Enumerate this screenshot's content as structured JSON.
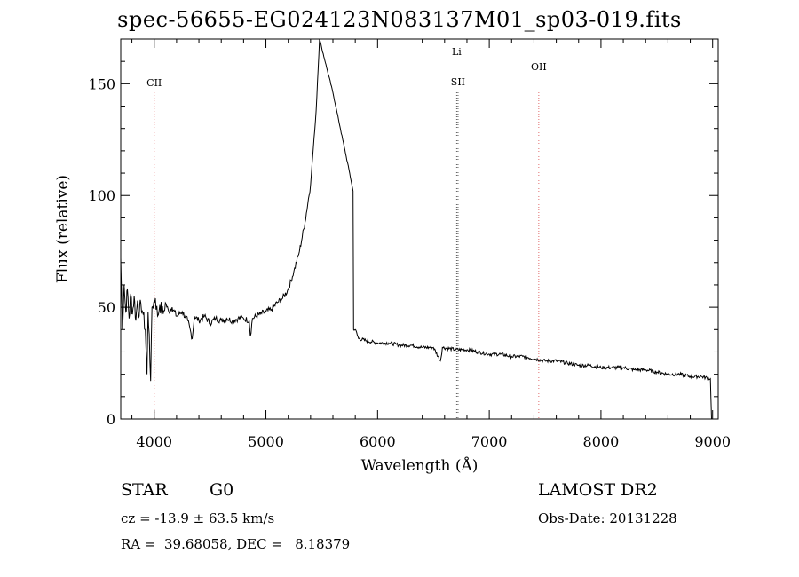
{
  "chart_data": {
    "type": "line",
    "title": "spec-56655-EG024123N083137M01_sp03-019.fits",
    "xlabel": "Wavelength (Å)",
    "ylabel": "Flux (relative)",
    "xlim": [
      3700,
      9050
    ],
    "ylim": [
      0,
      170
    ],
    "xticks": [
      4000,
      5000,
      6000,
      7000,
      8000,
      9000
    ],
    "yticks": [
      0,
      50,
      100,
      150
    ],
    "grid": false,
    "series": [
      {
        "points": [
          [
            3700,
            72
          ],
          [
            3715,
            40
          ],
          [
            3730,
            60
          ],
          [
            3745,
            48
          ],
          [
            3760,
            58
          ],
          [
            3775,
            45
          ],
          [
            3790,
            56
          ],
          [
            3805,
            47
          ],
          [
            3820,
            55
          ],
          [
            3835,
            44
          ],
          [
            3850,
            53
          ],
          [
            3865,
            46
          ],
          [
            3880,
            52
          ],
          [
            3900,
            47
          ],
          [
            3920,
            40
          ],
          [
            3935,
            20
          ],
          [
            3945,
            48
          ],
          [
            3955,
            38
          ],
          [
            3968,
            17
          ],
          [
            3980,
            50
          ],
          [
            3995,
            52
          ],
          [
            4010,
            54
          ],
          [
            4030,
            46
          ],
          [
            4050,
            51
          ],
          [
            4080,
            47
          ],
          [
            4100,
            52
          ],
          [
            4130,
            48
          ],
          [
            4160,
            50
          ],
          [
            4200,
            46
          ],
          [
            4250,
            48
          ],
          [
            4300,
            44
          ],
          [
            4340,
            36
          ],
          [
            4360,
            46
          ],
          [
            4400,
            44
          ],
          [
            4450,
            46
          ],
          [
            4500,
            43
          ],
          [
            4550,
            45
          ],
          [
            4600,
            44
          ],
          [
            4650,
            45
          ],
          [
            4700,
            44
          ],
          [
            4750,
            45
          ],
          [
            4800,
            45
          ],
          [
            4850,
            44
          ],
          [
            4861,
            37
          ],
          [
            4880,
            45
          ],
          [
            4950,
            47
          ],
          [
            5000,
            48
          ],
          [
            5050,
            49
          ],
          [
            5100,
            52
          ],
          [
            5150,
            54
          ],
          [
            5200,
            58
          ],
          [
            5250,
            66
          ],
          [
            5300,
            75
          ],
          [
            5350,
            88
          ],
          [
            5400,
            105
          ],
          [
            5450,
            138
          ],
          [
            5480,
            170
          ],
          [
            5500,
            166
          ],
          [
            5550,
            156
          ],
          [
            5600,
            146
          ],
          [
            5650,
            134
          ],
          [
            5700,
            122
          ],
          [
            5750,
            110
          ],
          [
            5780,
            102
          ],
          [
            5785,
            40
          ],
          [
            5800,
            40
          ],
          [
            5830,
            36
          ],
          [
            5900,
            35
          ],
          [
            6000,
            34
          ],
          [
            6100,
            34
          ],
          [
            6200,
            33
          ],
          [
            6300,
            33
          ],
          [
            6400,
            32
          ],
          [
            6500,
            32
          ],
          [
            6563,
            26
          ],
          [
            6580,
            32
          ],
          [
            6700,
            31
          ],
          [
            6800,
            31
          ],
          [
            6900,
            30
          ],
          [
            7000,
            29
          ],
          [
            7100,
            29
          ],
          [
            7200,
            28
          ],
          [
            7300,
            28
          ],
          [
            7400,
            27
          ],
          [
            7500,
            26
          ],
          [
            7600,
            26
          ],
          [
            7700,
            25
          ],
          [
            7800,
            24
          ],
          [
            7900,
            24
          ],
          [
            8000,
            23
          ],
          [
            8100,
            23
          ],
          [
            8200,
            23
          ],
          [
            8300,
            22
          ],
          [
            8400,
            22
          ],
          [
            8500,
            21
          ],
          [
            8600,
            20
          ],
          [
            8700,
            20
          ],
          [
            8800,
            19
          ],
          [
            8900,
            19
          ],
          [
            8980,
            18
          ],
          [
            8990,
            0
          ]
        ]
      }
    ],
    "line_markers": [
      {
        "label": "CII",
        "x": 4000,
        "color": "#e26d6d"
      },
      {
        "label": "Li",
        "x": 6708,
        "color": "#555555"
      },
      {
        "label": "SII",
        "x": 6720,
        "color": "#555555"
      },
      {
        "label": "OII",
        "x": 7443,
        "color": "#e26d6d"
      }
    ]
  },
  "footer": {
    "class_label": "STAR",
    "subclass": "G0",
    "survey": "LAMOST DR2",
    "cz_text": "cz = -13.9 ± 63.5 km/s",
    "obs_date": "Obs-Date: 20131228",
    "coords_text": "RA =  39.68058, DEC =   8.18379"
  }
}
